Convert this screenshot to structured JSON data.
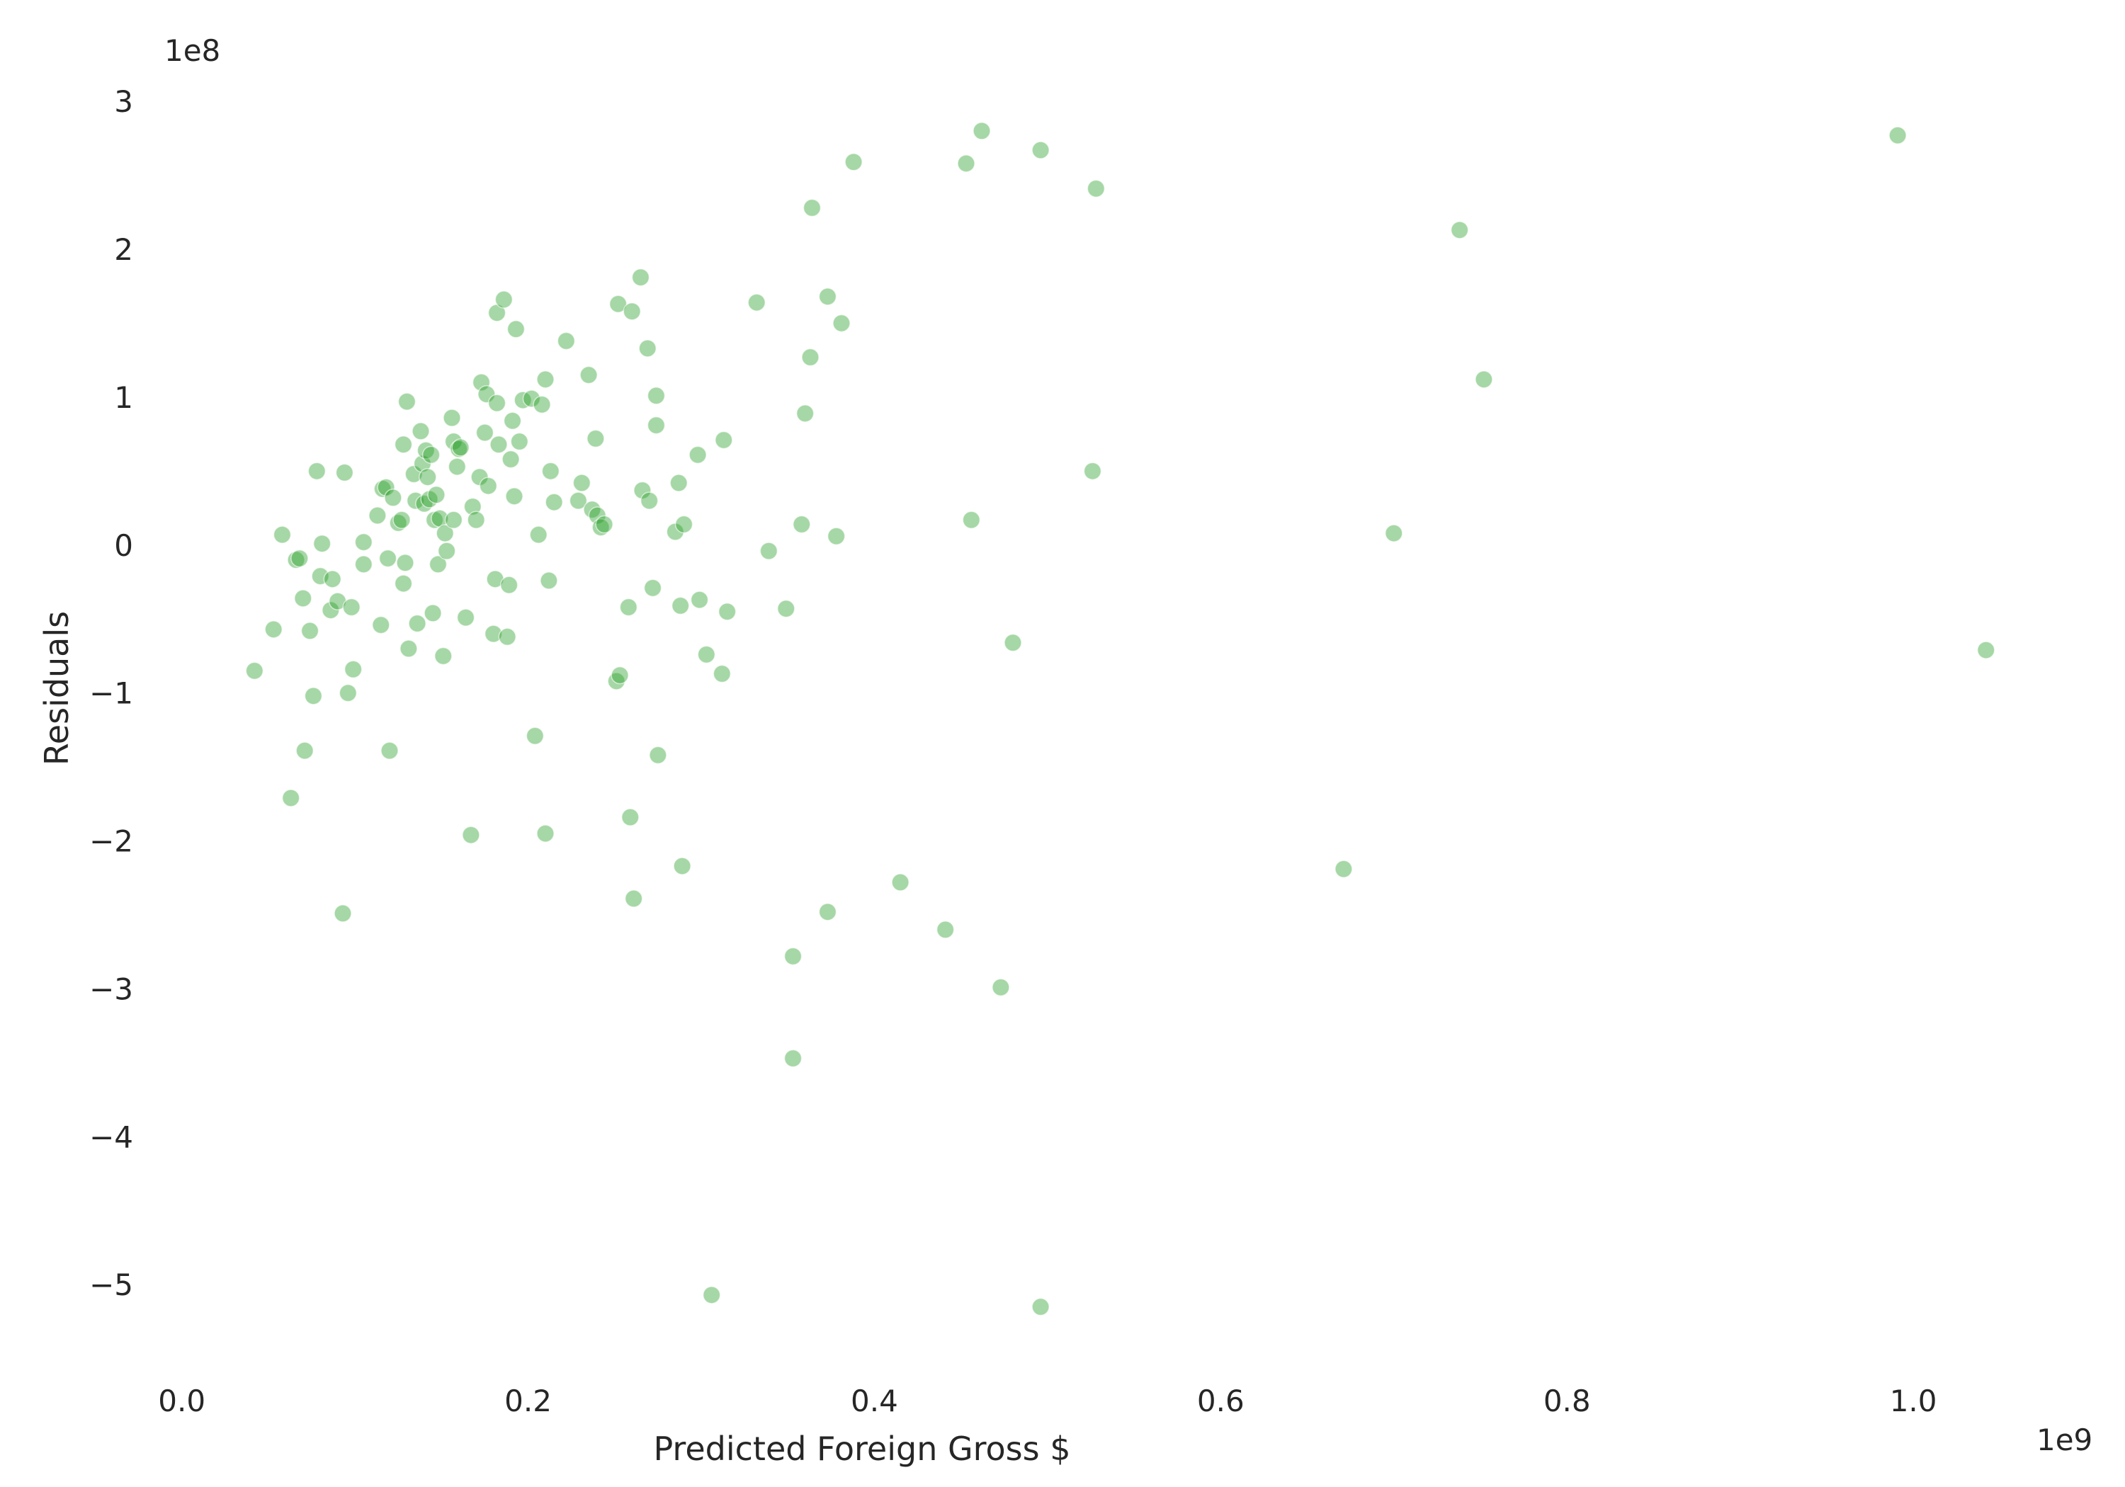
{
  "chart_data": {
    "type": "scatter",
    "title": "",
    "xlabel": "Predicted Foreign Gross $",
    "ylabel": "Residuals",
    "x_offset_label": "1e9",
    "y_offset_label": "1e8",
    "xlim": [
      -0.015,
      1.065
    ],
    "ylim": [
      -5.65,
      3.35
    ],
    "xticks": [
      0.0,
      0.2,
      0.4,
      0.6,
      0.8,
      1.0
    ],
    "xtick_labels": [
      "0.0",
      "0.2",
      "0.4",
      "0.6",
      "0.8",
      "1.0"
    ],
    "yticks": [
      -5,
      -4,
      -3,
      -2,
      -1,
      0,
      1,
      2,
      3
    ],
    "ytick_labels": [
      "−5",
      "−4",
      "−3",
      "−2",
      "−1",
      "0",
      "1",
      "2",
      "3"
    ],
    "grid": false,
    "color": "#2ca02c",
    "points": [
      [
        0.042,
        -0.85
      ],
      [
        0.053,
        -0.57
      ],
      [
        0.058,
        0.07
      ],
      [
        0.063,
        -1.71
      ],
      [
        0.066,
        -0.1
      ],
      [
        0.068,
        -0.09
      ],
      [
        0.07,
        -0.36
      ],
      [
        0.071,
        -1.39
      ],
      [
        0.074,
        -0.58
      ],
      [
        0.076,
        -1.02
      ],
      [
        0.078,
        0.5
      ],
      [
        0.08,
        -0.21
      ],
      [
        0.081,
        0.01
      ],
      [
        0.086,
        -0.44
      ],
      [
        0.087,
        -0.23
      ],
      [
        0.09,
        -0.38
      ],
      [
        0.093,
        -2.49
      ],
      [
        0.094,
        0.49
      ],
      [
        0.096,
        -1.0
      ],
      [
        0.098,
        -0.42
      ],
      [
        0.099,
        -0.84
      ],
      [
        0.105,
        -0.13
      ],
      [
        0.105,
        0.02
      ],
      [
        0.113,
        0.2
      ],
      [
        0.115,
        -0.54
      ],
      [
        0.116,
        0.38
      ],
      [
        0.118,
        0.39
      ],
      [
        0.119,
        -0.09
      ],
      [
        0.12,
        -1.39
      ],
      [
        0.122,
        0.32
      ],
      [
        0.125,
        0.15
      ],
      [
        0.127,
        0.17
      ],
      [
        0.128,
        -0.26
      ],
      [
        0.128,
        0.68
      ],
      [
        0.129,
        -0.12
      ],
      [
        0.13,
        0.97
      ],
      [
        0.131,
        -0.7
      ],
      [
        0.134,
        0.48
      ],
      [
        0.135,
        0.3
      ],
      [
        0.136,
        -0.53
      ],
      [
        0.138,
        0.77
      ],
      [
        0.139,
        0.55
      ],
      [
        0.14,
        0.28
      ],
      [
        0.141,
        0.64
      ],
      [
        0.142,
        0.46
      ],
      [
        0.143,
        0.31
      ],
      [
        0.144,
        0.61
      ],
      [
        0.145,
        -0.46
      ],
      [
        0.146,
        0.17
      ],
      [
        0.147,
        0.34
      ],
      [
        0.148,
        -0.13
      ],
      [
        0.149,
        0.18
      ],
      [
        0.151,
        -0.75
      ],
      [
        0.152,
        0.08
      ],
      [
        0.153,
        -0.04
      ],
      [
        0.156,
        0.86
      ],
      [
        0.157,
        0.7
      ],
      [
        0.157,
        0.17
      ],
      [
        0.159,
        0.53
      ],
      [
        0.16,
        0.65
      ],
      [
        0.161,
        0.66
      ],
      [
        0.164,
        -0.49
      ],
      [
        0.168,
        0.26
      ],
      [
        0.17,
        0.17
      ],
      [
        0.172,
        0.46
      ],
      [
        0.173,
        1.1
      ],
      [
        0.175,
        0.76
      ],
      [
        0.176,
        1.02
      ],
      [
        0.177,
        0.4
      ],
      [
        0.18,
        -0.6
      ],
      [
        0.181,
        -0.23
      ],
      [
        0.182,
        1.57
      ],
      [
        0.182,
        0.96
      ],
      [
        0.183,
        0.68
      ],
      [
        0.186,
        1.66
      ],
      [
        0.188,
        -0.62
      ],
      [
        0.189,
        -0.27
      ],
      [
        0.19,
        0.58
      ],
      [
        0.191,
        0.84
      ],
      [
        0.192,
        0.33
      ],
      [
        0.193,
        1.46
      ],
      [
        0.195,
        0.7
      ],
      [
        0.197,
        0.98
      ],
      [
        0.202,
        0.99
      ],
      [
        0.204,
        -1.29
      ],
      [
        0.206,
        0.07
      ],
      [
        0.208,
        0.95
      ],
      [
        0.21,
        1.12
      ],
      [
        0.212,
        -0.24
      ],
      [
        0.213,
        0.5
      ],
      [
        0.215,
        0.29
      ],
      [
        0.21,
        -1.95
      ],
      [
        0.167,
        -1.96
      ],
      [
        0.222,
        1.38
      ],
      [
        0.229,
        0.3
      ],
      [
        0.231,
        0.42
      ],
      [
        0.235,
        1.15
      ],
      [
        0.237,
        0.24
      ],
      [
        0.239,
        0.72
      ],
      [
        0.24,
        0.2
      ],
      [
        0.242,
        0.12
      ],
      [
        0.244,
        0.14
      ],
      [
        0.251,
        -0.92
      ],
      [
        0.252,
        1.63
      ],
      [
        0.253,
        -0.88
      ],
      [
        0.258,
        -0.42
      ],
      [
        0.259,
        -1.84
      ],
      [
        0.26,
        1.58
      ],
      [
        0.261,
        -2.39
      ],
      [
        0.265,
        1.81
      ],
      [
        0.266,
        0.37
      ],
      [
        0.269,
        1.33
      ],
      [
        0.27,
        0.3
      ],
      [
        0.272,
        -0.29
      ],
      [
        0.274,
        0.81
      ],
      [
        0.274,
        1.01
      ],
      [
        0.275,
        -1.42
      ],
      [
        0.285,
        0.09
      ],
      [
        0.287,
        0.42
      ],
      [
        0.288,
        -0.41
      ],
      [
        0.289,
        -2.17
      ],
      [
        0.29,
        0.14
      ],
      [
        0.298,
        0.61
      ],
      [
        0.299,
        -0.37
      ],
      [
        0.303,
        -0.74
      ],
      [
        0.306,
        -5.07
      ],
      [
        0.312,
        -0.87
      ],
      [
        0.313,
        0.71
      ],
      [
        0.315,
        -0.45
      ],
      [
        0.332,
        1.64
      ],
      [
        0.339,
        -0.04
      ],
      [
        0.349,
        -0.43
      ],
      [
        0.353,
        -2.78
      ],
      [
        0.353,
        -3.47
      ],
      [
        0.358,
        0.14
      ],
      [
        0.36,
        0.89
      ],
      [
        0.363,
        1.27
      ],
      [
        0.364,
        2.28
      ],
      [
        0.373,
        1.68
      ],
      [
        0.373,
        -2.48
      ],
      [
        0.378,
        0.06
      ],
      [
        0.381,
        1.5
      ],
      [
        0.388,
        2.59
      ],
      [
        0.415,
        -2.28
      ],
      [
        0.441,
        -2.6
      ],
      [
        0.453,
        2.58
      ],
      [
        0.456,
        0.17
      ],
      [
        0.462,
        2.8
      ],
      [
        0.473,
        -2.99
      ],
      [
        0.48,
        -0.66
      ],
      [
        0.496,
        2.67
      ],
      [
        0.496,
        -5.15
      ],
      [
        0.526,
        0.5
      ],
      [
        0.528,
        2.41
      ],
      [
        0.671,
        -2.19
      ],
      [
        0.7,
        0.08
      ],
      [
        0.738,
        2.13
      ],
      [
        0.752,
        1.12
      ],
      [
        0.991,
        2.77
      ],
      [
        1.042,
        -0.71
      ]
    ]
  }
}
